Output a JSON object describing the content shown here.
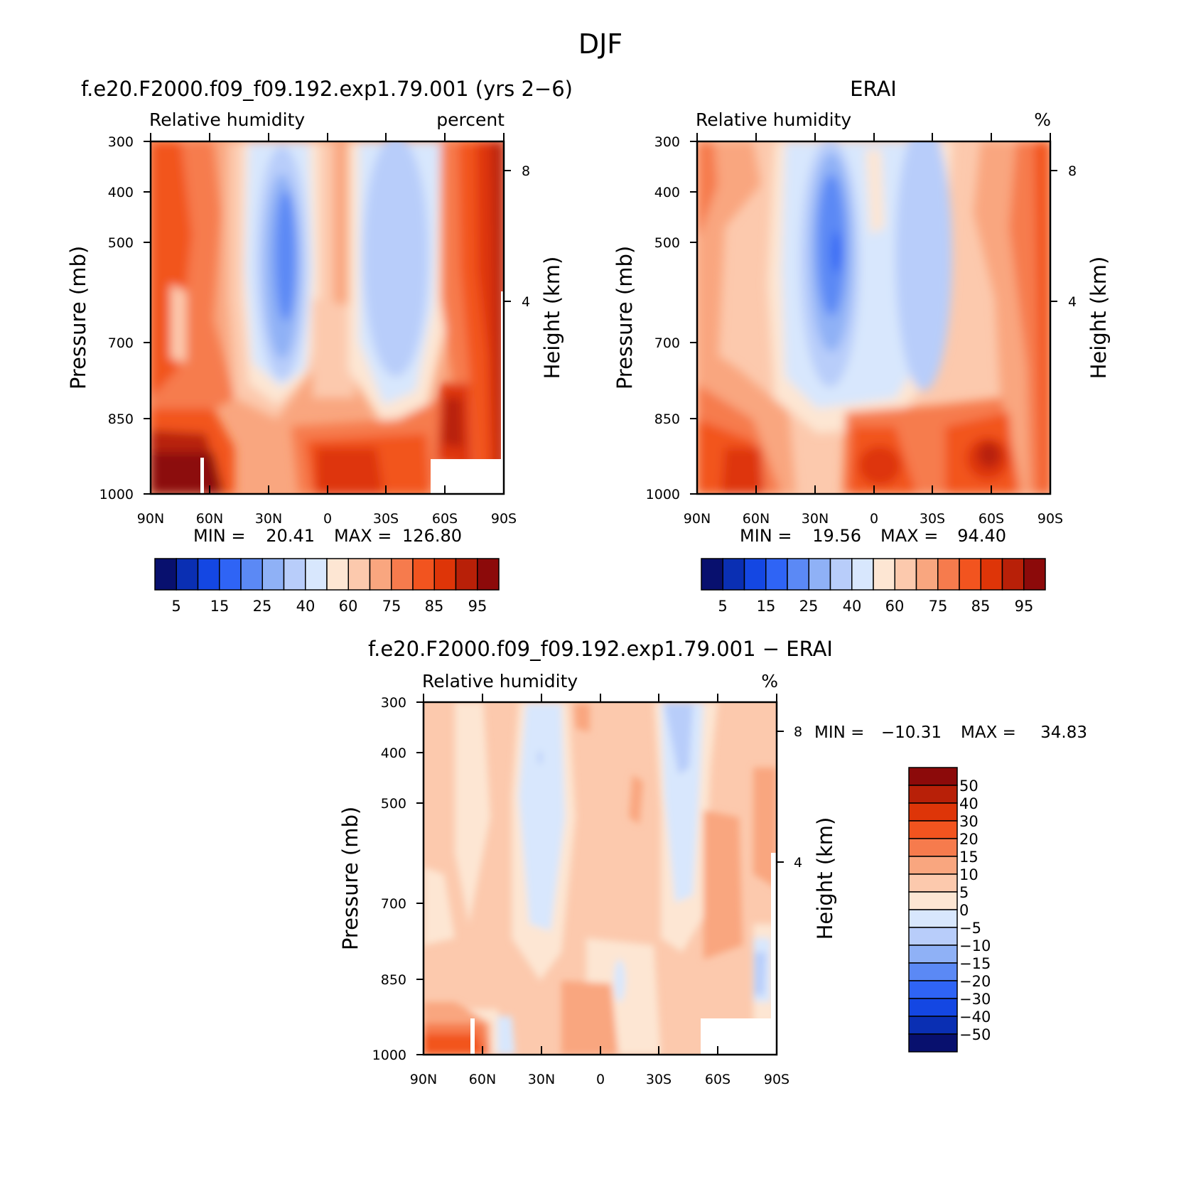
{
  "figure": {
    "title": "DJF"
  },
  "chart_data": [
    {
      "type": "heatmap",
      "title": "f.e20.F2000.f09_f09.192.exp1.79.001 (yrs 2−6)",
      "subtitle_left": "Relative humidity",
      "subtitle_right": "percent",
      "xlabel": "",
      "ylabel": "Pressure (mb)",
      "y2label": "Height (km)",
      "x_ticks": [
        "90N",
        "60N",
        "30N",
        "0",
        "30S",
        "60S",
        "90S"
      ],
      "y_ticks": [
        "300",
        "400",
        "500",
        "700",
        "850",
        "1000"
      ],
      "y2_ticks": [
        "8",
        "4"
      ],
      "min": 20.41,
      "max": 126.8,
      "min_label": "MIN =",
      "max_label": "MAX =",
      "min_text": "20.41",
      "max_text": "126.80",
      "colorbar": {
        "levels": [
          5,
          10,
          15,
          20,
          25,
          30,
          40,
          50,
          60,
          70,
          75,
          80,
          85,
          90,
          95
        ],
        "labels": [
          "5",
          "15",
          "25",
          "40",
          "60",
          "75",
          "85",
          "95"
        ],
        "colors": [
          "#08106e",
          "#0a2fb3",
          "#1447e3",
          "#2f64f5",
          "#5b89f5",
          "#8fb1f6",
          "#b8cdfa",
          "#d8e7fd",
          "#fde6d3",
          "#fcc9ad",
          "#f9a67f",
          "#f67b4d",
          "#f2541f",
          "#de3508",
          "#b82008",
          "#8c0a0a"
        ]
      },
      "approx_field_percent": [
        {
          "lat": "90N-60N",
          "p_mb": "300-850",
          "value_range": [
            75,
            90
          ]
        },
        {
          "lat": "90N-60N",
          "p_mb": "850-1000",
          "value_range": [
            90,
            100
          ]
        },
        {
          "lat": "30N-15N",
          "p_mb": "350-700",
          "value_range": [
            20,
            40
          ]
        },
        {
          "lat": "0",
          "p_mb": "300-1000",
          "value_range": [
            55,
            85
          ]
        },
        {
          "lat": "25S-35S",
          "p_mb": "300-800",
          "value_range": [
            35,
            50
          ]
        },
        {
          "lat": "60S-90S",
          "p_mb": "300-1000",
          "value_range": [
            80,
            100
          ]
        }
      ]
    },
    {
      "type": "heatmap",
      "title": "ERAI",
      "subtitle_left": "Relative humidity",
      "subtitle_right": "%",
      "xlabel": "",
      "ylabel": "Pressure (mb)",
      "y2label": "Height (km)",
      "x_ticks": [
        "90N",
        "60N",
        "30N",
        "0",
        "30S",
        "60S",
        "90S"
      ],
      "y_ticks": [
        "300",
        "400",
        "500",
        "700",
        "850",
        "1000"
      ],
      "y2_ticks": [
        "8",
        "4"
      ],
      "min": 19.56,
      "max": 94.4,
      "min_label": "MIN =",
      "max_label": "MAX =",
      "min_text": "19.56",
      "max_text": "94.40",
      "colorbar": {
        "levels": [
          5,
          10,
          15,
          20,
          25,
          30,
          40,
          50,
          60,
          70,
          75,
          80,
          85,
          90,
          95
        ],
        "labels": [
          "5",
          "15",
          "25",
          "40",
          "60",
          "75",
          "85",
          "95"
        ],
        "colors": [
          "#08106e",
          "#0a2fb3",
          "#1447e3",
          "#2f64f5",
          "#5b89f5",
          "#8fb1f6",
          "#b8cdfa",
          "#d8e7fd",
          "#fde6d3",
          "#fcc9ad",
          "#f9a67f",
          "#f67b4d",
          "#f2541f",
          "#de3508",
          "#b82008",
          "#8c0a0a"
        ]
      },
      "approx_field_percent": [
        {
          "lat": "90N-60N",
          "p_mb": "300-800",
          "value_range": [
            65,
            80
          ]
        },
        {
          "lat": "90N-60N",
          "p_mb": "800-1000",
          "value_range": [
            80,
            90
          ]
        },
        {
          "lat": "30N-15N",
          "p_mb": "300-750",
          "value_range": [
            20,
            40
          ]
        },
        {
          "lat": "25S-40S",
          "p_mb": "300-800",
          "value_range": [
            35,
            50
          ]
        },
        {
          "lat": "60S-90S",
          "p_mb": "300-1000",
          "value_range": [
            70,
            90
          ]
        }
      ]
    },
    {
      "type": "heatmap",
      "title": "f.e20.F2000.f09_f09.192.exp1.79.001 − ERAI",
      "subtitle_left": "Relative humidity",
      "subtitle_right": "%",
      "xlabel": "",
      "ylabel": "Pressure (mb)",
      "y2label": "Height (km)",
      "x_ticks": [
        "90N",
        "60N",
        "30N",
        "0",
        "30S",
        "60S",
        "90S"
      ],
      "y_ticks": [
        "300",
        "400",
        "500",
        "700",
        "850",
        "1000"
      ],
      "y2_ticks": [
        "8",
        "4"
      ],
      "min": -10.31,
      "max": 34.83,
      "min_label": "MIN =",
      "max_label": "MAX =",
      "min_text": "−10.31",
      "max_text": "34.83",
      "colorbar": {
        "levels": [
          50,
          40,
          30,
          20,
          15,
          10,
          5,
          0,
          -5,
          -10,
          -15,
          -20,
          -30,
          -40,
          -50
        ],
        "labels": [
          "50",
          "40",
          "30",
          "20",
          "15",
          "10",
          "5",
          "0",
          "−5",
          "−10",
          "−15",
          "−20",
          "−30",
          "−40",
          "−50"
        ],
        "colors": [
          "#8c0a0a",
          "#b82008",
          "#de3508",
          "#f2541f",
          "#f67b4d",
          "#f9a67f",
          "#fcc9ad",
          "#fde6d3",
          "#d8e7fd",
          "#b8cdfa",
          "#8fb1f6",
          "#5b89f5",
          "#2f64f5",
          "#1447e3",
          "#0a2fb3",
          "#08106e"
        ]
      },
      "approx_field_percent": [
        {
          "lat": "90N-65N",
          "p_mb": "300-900",
          "value_range": [
            5,
            10
          ]
        },
        {
          "lat": "90N-65N",
          "p_mb": "900-1000",
          "value_range": [
            10,
            30
          ]
        },
        {
          "lat": "40N-25N",
          "p_mb": "300-800",
          "value_range": [
            -5,
            0
          ]
        },
        {
          "lat": "10N-10S",
          "p_mb": "300-1000",
          "value_range": [
            5,
            15
          ]
        },
        {
          "lat": "30S-40S",
          "p_mb": "300-650",
          "value_range": [
            -10,
            -5
          ]
        },
        {
          "lat": "50S-70S",
          "p_mb": "400-900",
          "value_range": [
            10,
            15
          ]
        }
      ]
    }
  ]
}
